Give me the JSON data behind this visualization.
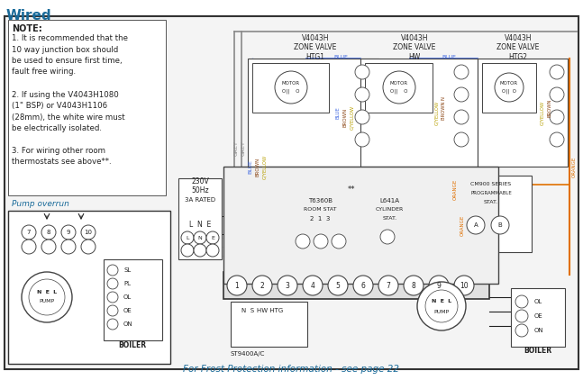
{
  "title": "Wired",
  "bg_color": "#ffffff",
  "footer_text": "For Frost Protection information - see page 22",
  "note_lines": [
    "NOTE:",
    "1. It is recommended that the",
    "10 way junction box should",
    "be used to ensure first time,",
    "fault free wiring.",
    "",
    "2. If using the V4043H1080",
    "(1\" BSP) or V4043H1106",
    "(28mm), the white wire must",
    "be electrically isolated.",
    "",
    "3. For wiring other room",
    "thermostats see above**."
  ],
  "valve1_label": "V4043H\nZONE VALVE\nHTG1",
  "valve2_label": "V4043H\nZONE VALVE\nHW",
  "valve3_label": "V4043H\nZONE VALVE\nHTG2",
  "pump_overrun_label": "Pump overrun",
  "boiler_label": "BOILER",
  "room_stat_label": "T6360B\nROOM STAT\n2  1  3",
  "cylinder_stat_label": "L641A\nCYLINDER\nSTAT.",
  "prog_stat_label": "CM900 SERIES\nPROGRAMMABLE\nSTAT.",
  "power_label": "230V\n50Hz\n3A RATED",
  "st9400_label": "ST9400A/C",
  "hw_htg_label": "HW HTG",
  "wire_grey": "#888888",
  "wire_blue": "#4169e1",
  "wire_brown": "#8B4513",
  "wire_gyellow": "#b8a000",
  "wire_orange": "#e07000",
  "wire_black": "#222222",
  "box_bg": "#f4f4f4",
  "text_blue": "#1a6b9a",
  "text_dark": "#222222"
}
